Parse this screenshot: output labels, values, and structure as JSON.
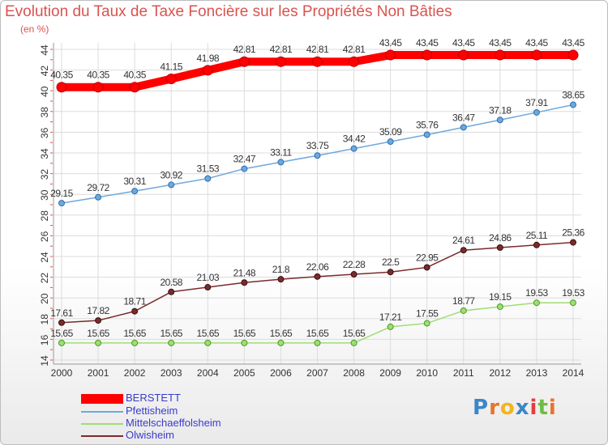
{
  "chart_data": {
    "type": "line",
    "title": "Evolution du Taux de Taxe Foncière sur les Propriétés Non Bâties",
    "subtitle": "(en %)",
    "x": [
      "2000",
      "2001",
      "2002",
      "2003",
      "2004",
      "2005",
      "2006",
      "2007",
      "2008",
      "2009",
      "2010",
      "2011",
      "2012",
      "2013",
      "2014"
    ],
    "ylim": [
      14,
      44
    ],
    "yticks": [
      14,
      16,
      18,
      20,
      22,
      24,
      26,
      28,
      30,
      32,
      34,
      36,
      38,
      40,
      42,
      44
    ],
    "grid": true,
    "legend_position": "bottom-left",
    "series": [
      {
        "name": "BERSTETT",
        "color": "#ff0000",
        "values": [
          40.35,
          40.35,
          40.35,
          41.15,
          41.98,
          42.81,
          42.81,
          42.81,
          42.81,
          43.45,
          43.45,
          43.45,
          43.45,
          43.45,
          43.45
        ],
        "labels": [
          "40.35",
          "40.35",
          "40.35",
          "41.15",
          "41.98",
          "42.81",
          "42.81",
          "42.81",
          "42.81",
          "43.45",
          "43.45",
          "43.45",
          "43.45",
          "43.45",
          "43.45"
        ]
      },
      {
        "name": "Pfettisheim",
        "color": "#6fa8dc",
        "values": [
          29.15,
          29.72,
          30.31,
          30.92,
          31.53,
          32.47,
          33.11,
          33.75,
          34.42,
          35.09,
          35.76,
          36.47,
          37.18,
          37.91,
          38.65
        ],
        "labels": [
          "29.15",
          "29.72",
          "30.31",
          "30.92",
          "31.53",
          "32.47",
          "33.11",
          "33.75",
          "34.42",
          "35.09",
          "35.76",
          "36.47",
          "37.18",
          "37.91",
          "38.65"
        ]
      },
      {
        "name": "Mittelschaeffolsheim",
        "color": "#9fde73",
        "values": [
          15.65,
          15.65,
          15.65,
          15.65,
          15.65,
          15.65,
          15.65,
          15.65,
          15.65,
          17.21,
          17.55,
          18.77,
          19.15,
          19.53,
          19.53
        ],
        "labels": [
          "15.65",
          "15.65",
          "15.65",
          "15.65",
          "15.65",
          "15.65",
          "15.65",
          "15.65",
          "15.65",
          "17.21",
          "17.55",
          "18.77",
          "19.15",
          "19.53",
          "19.53"
        ]
      },
      {
        "name": "Olwisheim",
        "color": "#7b2b2b",
        "values": [
          17.61,
          17.82,
          18.71,
          20.58,
          21.03,
          21.48,
          21.8,
          22.06,
          22.28,
          22.5,
          22.95,
          24.61,
          24.86,
          25.11,
          25.36
        ],
        "labels": [
          "17.61",
          "17.82",
          "18.71",
          "20.58",
          "21.03",
          "21.48",
          "21.8",
          "22.06",
          "22.28",
          "22.5",
          "22.95",
          "24.61",
          "24.86",
          "25.11",
          "25.36"
        ]
      }
    ]
  },
  "logo": {
    "letters": [
      "P",
      "r",
      "o",
      "x",
      "i",
      "t",
      "i"
    ],
    "colors": [
      "#3a86c8",
      "#e8742a",
      "#f2b51e",
      "#3a86c8",
      "#e83c3c",
      "#6cbd45",
      "#e8742a"
    ]
  }
}
